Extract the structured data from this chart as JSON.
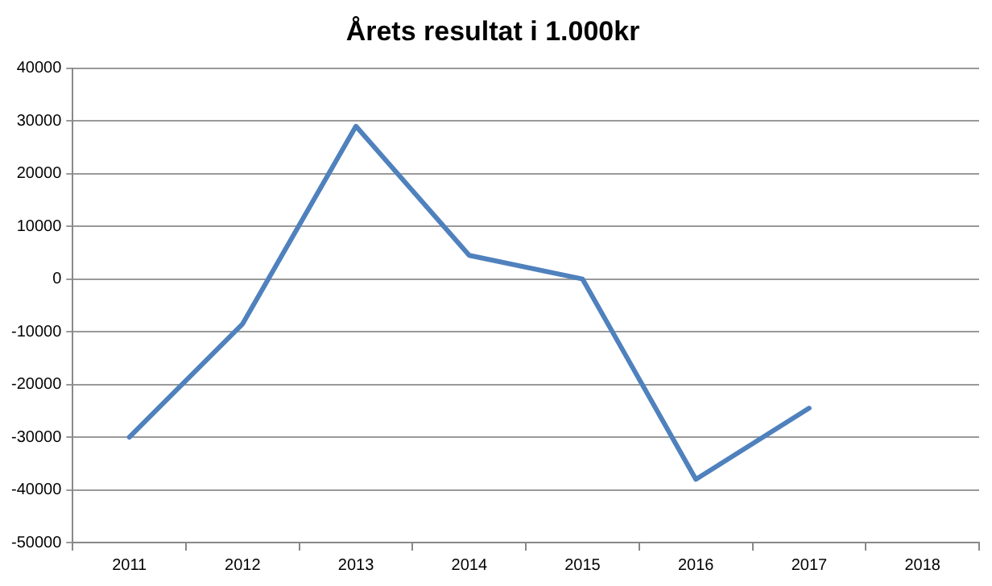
{
  "chart_data": {
    "type": "line",
    "title": "Årets resultat i 1.000kr",
    "categories": [
      "2011",
      "2012",
      "2013",
      "2014",
      "2015",
      "2016",
      "2017",
      "2018"
    ],
    "series": [
      {
        "color": "#4f81bd",
        "values": [
          -30000,
          -8500,
          29000,
          4500,
          0,
          -38000,
          -24500,
          null
        ]
      }
    ],
    "ylim": [
      -50000,
      40000
    ],
    "yticks": [
      -50000,
      -40000,
      -30000,
      -20000,
      -10000,
      0,
      10000,
      20000,
      30000,
      40000
    ],
    "grid": "y",
    "legend": false,
    "marker": "none",
    "line_style": "solid"
  }
}
